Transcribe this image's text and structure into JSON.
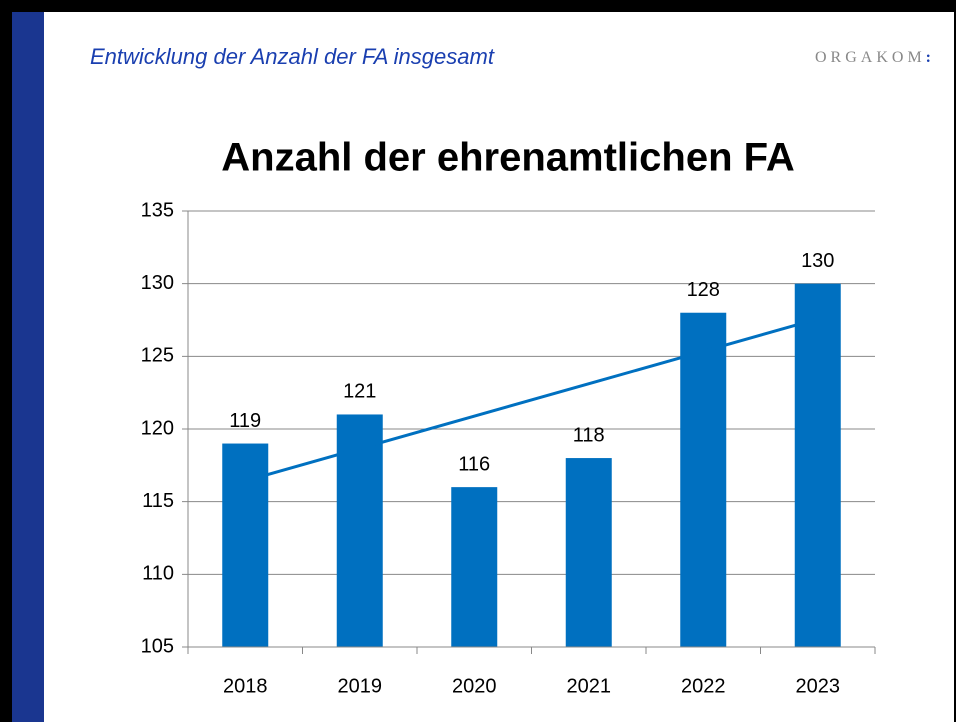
{
  "header": {
    "subtitle": "Entwicklung der Anzahl der FA insgesamt",
    "logo": "ORGAKOM",
    "logo_mark": ":"
  },
  "chart_data": {
    "type": "bar",
    "title": "Anzahl der ehrenamtlichen FA",
    "categories": [
      "2018",
      "2019",
      "2020",
      "2021",
      "2022",
      "2023"
    ],
    "values": [
      119,
      121,
      116,
      118,
      128,
      130
    ],
    "color": "#0070c0",
    "ylim": [
      105,
      135
    ],
    "yticks": [
      105,
      110,
      115,
      120,
      125,
      130,
      135
    ],
    "grid": true,
    "trendline": true,
    "data_labels": true
  }
}
